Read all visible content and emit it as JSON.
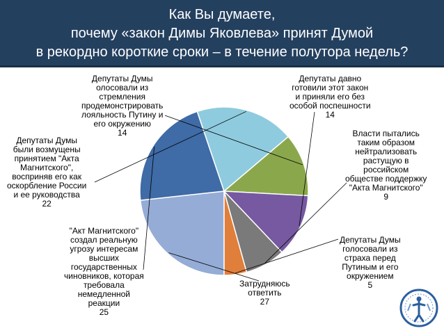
{
  "title": {
    "lines": [
      "Как Вы думаете,",
      "почему «закон Димы Яковлева» принят Думой",
      "в рекордно короткие сроки – в течение полутора недель?"
    ]
  },
  "chart_data": {
    "type": "pie",
    "categories": [
      "Затрудняюсь ответить",
      "\"Акт Магнитского\" создал реальную угрозу интересам высших государственных чиновников, которая требовала немедленной реакции",
      "Депутаты Думы были возмущены принятием \"Акта Магнитского\", восприняв его как оскорбление России и ее руководства",
      "Депутаты Думы олосовали из стремления продемонстрировать лояльность Путину и его окружению",
      "Депутаты давно готовили этот закон и приняли его без особой поспешности",
      "Власти пытались таким образом нейтрализовать растущую в российском обществе поддержку \"Акта Магнитского\"",
      "Депутаты Думы голосовали из страха перед Путиным и его окружением"
    ],
    "values": [
      27,
      25,
      22,
      14,
      14,
      9,
      5
    ],
    "colors": [
      "#95acd6",
      "#3f6ba6",
      "#8fcbde",
      "#8aa84b",
      "#7659a0",
      "#7a7a7a",
      "#e07e3b"
    ]
  },
  "labels": [
    {
      "lines": [
        "Затрудняюсь",
        "ответить"
      ],
      "value": "27"
    },
    {
      "lines": [
        "\"Акт Магнитского\"",
        "создал реальную",
        "угрозу интересам",
        "высших",
        "государственных",
        "чиновников, которая",
        "требовала",
        "немедленной",
        "реакции"
      ],
      "value": "25"
    },
    {
      "lines": [
        "Депутаты Думы",
        "были возмущены",
        "принятием \"Акта",
        "Магнитского\",",
        "восприняв его как",
        "оскорбление России",
        "и ее руководства"
      ],
      "value": "22"
    },
    {
      "lines": [
        "Депутаты Думы",
        "олосовали из",
        "стремления",
        "продемонстрировать",
        "лояльность Путину и",
        "его окружению"
      ],
      "value": "14"
    },
    {
      "lines": [
        "Депутаты давно",
        "готовили этот закон",
        "и приняли его без",
        "особой поспешности"
      ],
      "value": "14"
    },
    {
      "lines": [
        "Власти пытались",
        "таким образом",
        "нейтрализовать",
        "растущую в",
        "российском",
        "обществе поддержку",
        "\"Акта Магнитского\""
      ],
      "value": "9"
    },
    {
      "lines": [
        "Депутаты Думы",
        "голосовали из",
        "страха перед",
        "Путиным и его",
        "окружением"
      ],
      "value": "5"
    }
  ]
}
